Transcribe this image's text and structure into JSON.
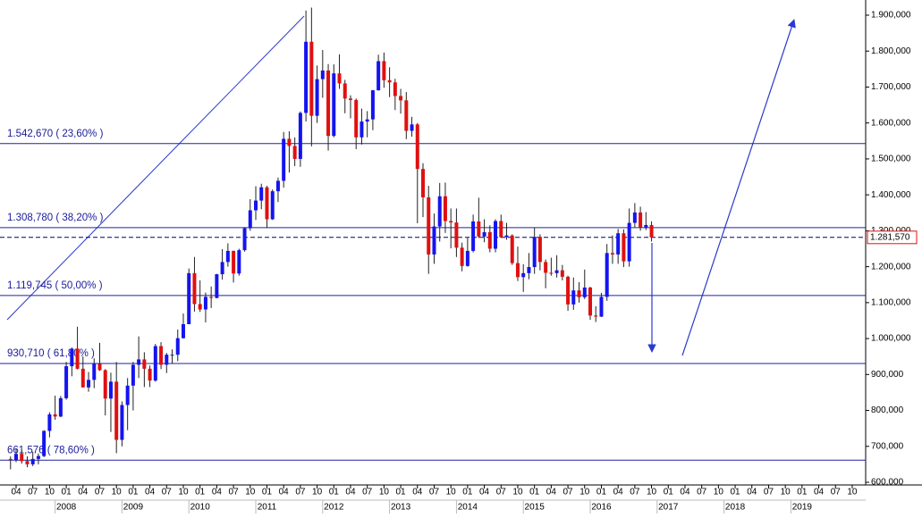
{
  "chart_data": {
    "type": "candlestick",
    "up_color": "#1414f0",
    "down_color": "#e01010",
    "level_color": "#2020a0",
    "ylim": [
      600,
      1900
    ],
    "yticks": [
      {
        "value": 600,
        "label": "600,000"
      },
      {
        "value": 700,
        "label": "700,000"
      },
      {
        "value": 800,
        "label": "800,000"
      },
      {
        "value": 900,
        "label": "900,000"
      },
      {
        "value": 1000,
        "label": "1.000,000"
      },
      {
        "value": 1100,
        "label": "1.100,000"
      },
      {
        "value": 1200,
        "label": "1.200,000"
      },
      {
        "value": 1300,
        "label": "1.300,000"
      },
      {
        "value": 1400,
        "label": "1.400,000"
      },
      {
        "value": 1500,
        "label": "1.500,000"
      },
      {
        "value": 1600,
        "label": "1.600,000"
      },
      {
        "value": 1700,
        "label": "1.700,000"
      },
      {
        "value": 1800,
        "label": "1.800,000"
      },
      {
        "value": 1900,
        "label": "1.900,000"
      }
    ],
    "x_tick_labels": [
      "04",
      "07",
      "10",
      "01",
      "04",
      "07",
      "10",
      "01",
      "04",
      "07",
      "10",
      "01",
      "04",
      "07",
      "10",
      "01",
      "04",
      "07",
      "10",
      "01",
      "04",
      "07",
      "10",
      "01",
      "04",
      "07",
      "10",
      "01",
      "04",
      "07",
      "10",
      "01",
      "04",
      "07",
      "10",
      "01",
      "04",
      "07",
      "10",
      "01",
      "04",
      "07",
      "10",
      "01",
      "04",
      "07",
      "10",
      "01",
      "04",
      "07",
      "10"
    ],
    "years": [
      "2008",
      "2009",
      "2010",
      "2011",
      "2012",
      "2013",
      "2014",
      "2015",
      "2016",
      "2017",
      "2018",
      "2019"
    ],
    "levels": [
      {
        "value": 1542.67,
        "label": "1.542,670  ( 23,60% )"
      },
      {
        "value": 1308.78,
        "label": "1.308,780  ( 38,20% )"
      },
      {
        "value": 1119.745,
        "label": "1.119,745  ( 50,00% )"
      },
      {
        "value": 930.71,
        "label": "930,710  ( 61,80% )"
      },
      {
        "value": 661.576,
        "label": "661,576  ( 78,60% )"
      }
    ],
    "last_price": {
      "value": 1281.57,
      "label": "1.281,570"
    },
    "ohlc": [
      [
        665,
        672,
        636,
        662
      ],
      [
        662,
        692,
        656,
        679
      ],
      [
        679,
        690,
        652,
        659
      ],
      [
        659,
        672,
        642,
        650
      ],
      [
        650,
        685,
        645,
        665
      ],
      [
        665,
        680,
        650,
        673
      ],
      [
        673,
        745,
        670,
        743
      ],
      [
        743,
        795,
        725,
        789
      ],
      [
        789,
        841,
        774,
        783
      ],
      [
        783,
        840,
        781,
        834
      ],
      [
        834,
        935,
        830,
        923
      ],
      [
        923,
        975,
        895,
        972
      ],
      [
        972,
        1033,
        914,
        916
      ],
      [
        916,
        950,
        864,
        864
      ],
      [
        864,
        907,
        852,
        885
      ],
      [
        885,
        945,
        862,
        930
      ],
      [
        930,
        988,
        910,
        912
      ],
      [
        912,
        915,
        786,
        833
      ],
      [
        833,
        905,
        740,
        880
      ],
      [
        880,
        935,
        681,
        718
      ],
      [
        718,
        825,
        700,
        815
      ],
      [
        815,
        890,
        745,
        869
      ],
      [
        869,
        935,
        800,
        927
      ],
      [
        927,
        1006,
        890,
        942
      ],
      [
        942,
        962,
        865,
        916
      ],
      [
        916,
        925,
        865,
        883
      ],
      [
        883,
        985,
        880,
        979
      ],
      [
        979,
        990,
        915,
        927
      ],
      [
        927,
        960,
        904,
        955
      ],
      [
        955,
        970,
        930,
        955
      ],
      [
        955,
        1025,
        937,
        1001
      ],
      [
        1001,
        1070,
        1000,
        1040
      ],
      [
        1040,
        1195,
        1040,
        1182
      ],
      [
        1182,
        1227,
        1075,
        1096
      ],
      [
        1096,
        1162,
        1074,
        1081
      ],
      [
        1081,
        1128,
        1045,
        1116
      ],
      [
        1116,
        1145,
        1085,
        1113
      ],
      [
        1113,
        1180,
        1112,
        1179
      ],
      [
        1179,
        1249,
        1164,
        1213
      ],
      [
        1213,
        1265,
        1200,
        1244
      ],
      [
        1244,
        1245,
        1156,
        1181
      ],
      [
        1181,
        1250,
        1175,
        1246
      ],
      [
        1246,
        1310,
        1242,
        1307
      ],
      [
        1307,
        1388,
        1300,
        1357
      ],
      [
        1357,
        1424,
        1330,
        1384
      ],
      [
        1384,
        1431,
        1360,
        1421
      ],
      [
        1421,
        1425,
        1308,
        1332
      ],
      [
        1332,
        1415,
        1330,
        1410
      ],
      [
        1410,
        1448,
        1380,
        1439
      ],
      [
        1439,
        1575,
        1420,
        1556
      ],
      [
        1556,
        1577,
        1462,
        1536
      ],
      [
        1536,
        1560,
        1480,
        1500
      ],
      [
        1500,
        1632,
        1478,
        1628
      ],
      [
        1628,
        1913,
        1604,
        1826
      ],
      [
        1826,
        1921,
        1535,
        1620
      ],
      [
        1620,
        1760,
        1600,
        1722
      ],
      [
        1722,
        1803,
        1670,
        1746
      ],
      [
        1746,
        1764,
        1523,
        1564
      ],
      [
        1564,
        1763,
        1560,
        1738
      ],
      [
        1738,
        1791,
        1695,
        1710
      ],
      [
        1710,
        1720,
        1627,
        1668
      ],
      [
        1668,
        1677,
        1613,
        1664
      ],
      [
        1664,
        1668,
        1527,
        1560
      ],
      [
        1560,
        1640,
        1540,
        1604
      ],
      [
        1604,
        1633,
        1560,
        1610
      ],
      [
        1610,
        1692,
        1580,
        1691
      ],
      [
        1691,
        1790,
        1690,
        1772
      ],
      [
        1772,
        1796,
        1698,
        1719
      ],
      [
        1719,
        1755,
        1672,
        1713
      ],
      [
        1713,
        1723,
        1636,
        1675
      ],
      [
        1675,
        1695,
        1626,
        1663
      ],
      [
        1663,
        1686,
        1555,
        1578
      ],
      [
        1578,
        1617,
        1562,
        1596
      ],
      [
        1596,
        1600,
        1321,
        1472
      ],
      [
        1472,
        1488,
        1338,
        1393
      ],
      [
        1393,
        1425,
        1180,
        1234
      ],
      [
        1234,
        1348,
        1208,
        1312
      ],
      [
        1312,
        1433,
        1270,
        1396
      ],
      [
        1396,
        1434,
        1294,
        1327
      ],
      [
        1327,
        1362,
        1251,
        1323
      ],
      [
        1323,
        1362,
        1227,
        1253
      ],
      [
        1253,
        1267,
        1187,
        1202
      ],
      [
        1202,
        1280,
        1200,
        1244
      ],
      [
        1244,
        1345,
        1240,
        1326
      ],
      [
        1326,
        1392,
        1280,
        1284
      ],
      [
        1284,
        1332,
        1268,
        1296
      ],
      [
        1296,
        1315,
        1240,
        1250
      ],
      [
        1250,
        1332,
        1240,
        1327
      ],
      [
        1327,
        1345,
        1280,
        1282
      ],
      [
        1282,
        1322,
        1275,
        1287
      ],
      [
        1287,
        1290,
        1205,
        1210
      ],
      [
        1210,
        1256,
        1160,
        1171
      ],
      [
        1171,
        1207,
        1130,
        1182
      ],
      [
        1182,
        1238,
        1165,
        1199
      ],
      [
        1199,
        1308,
        1180,
        1283
      ],
      [
        1283,
        1290,
        1190,
        1213
      ],
      [
        1213,
        1220,
        1140,
        1183
      ],
      [
        1183,
        1225,
        1175,
        1182
      ],
      [
        1182,
        1232,
        1170,
        1190
      ],
      [
        1190,
        1205,
        1162,
        1172
      ],
      [
        1172,
        1175,
        1077,
        1095
      ],
      [
        1095,
        1170,
        1080,
        1134
      ],
      [
        1134,
        1157,
        1100,
        1115
      ],
      [
        1115,
        1192,
        1110,
        1142
      ],
      [
        1142,
        1144,
        1052,
        1064
      ],
      [
        1064,
        1090,
        1046,
        1061
      ],
      [
        1061,
        1127,
        1060,
        1116
      ],
      [
        1116,
        1263,
        1105,
        1238
      ],
      [
        1238,
        1287,
        1208,
        1234
      ],
      [
        1234,
        1305,
        1208,
        1293
      ],
      [
        1293,
        1304,
        1199,
        1215
      ],
      [
        1215,
        1362,
        1200,
        1322
      ],
      [
        1322,
        1377,
        1310,
        1351
      ],
      [
        1351,
        1367,
        1300,
        1309
      ],
      [
        1309,
        1352,
        1302,
        1316
      ],
      [
        1316,
        1326,
        1270,
        1281.57
      ]
    ]
  }
}
